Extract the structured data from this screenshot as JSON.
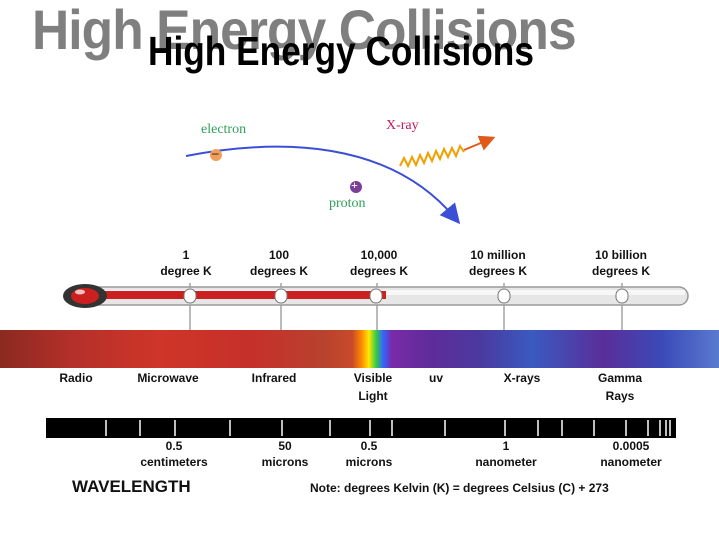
{
  "title": {
    "shadow_text": "High Energy Collisions",
    "main_text": "High Energy Collisions"
  },
  "collision": {
    "electron_label": "electron",
    "electron_symbol": "–",
    "proton_label": "proton",
    "proton_symbol": "+",
    "xray_label": "X-ray",
    "electron_color": "#2f9f5a",
    "proton_color": "#2f9f5a",
    "xray_color": "#c2185b",
    "path_color": "#3b4fd6"
  },
  "temperatures": [
    {
      "line1": "1",
      "line2": "degree K"
    },
    {
      "line1": "100",
      "line2": "degrees K"
    },
    {
      "line1": "10,000",
      "line2": "degrees K"
    },
    {
      "line1": "10 million",
      "line2": "degrees K"
    },
    {
      "line1": "10 billion",
      "line2": "degrees K"
    }
  ],
  "bands": [
    {
      "line1": "Radio",
      "line2": ""
    },
    {
      "line1": "Microwave",
      "line2": ""
    },
    {
      "line1": "Infrared",
      "line2": ""
    },
    {
      "line1": "Visible",
      "line2": "Light"
    },
    {
      "line1": "uv",
      "line2": ""
    },
    {
      "line1": "X-rays",
      "line2": ""
    },
    {
      "line1": "Gamma",
      "line2": "Rays"
    }
  ],
  "wavelengths": [
    {
      "line1": "0.5",
      "line2": "centimeters"
    },
    {
      "line1": "50",
      "line2": "microns"
    },
    {
      "line1": "0.5",
      "line2": "microns"
    },
    {
      "line1": "1",
      "line2": "nanometer"
    },
    {
      "line1": "0.0005",
      "line2": "nanometer"
    }
  ],
  "wavelength_label": "WAVELENGTH",
  "note": "Note: degrees Kelvin (K) = degrees Celsius (C) + 273",
  "colors": {
    "background": "#ffffff",
    "thermometer_fluid": "#cc1f1f",
    "thermometer_glass": "#d8d8d8"
  }
}
